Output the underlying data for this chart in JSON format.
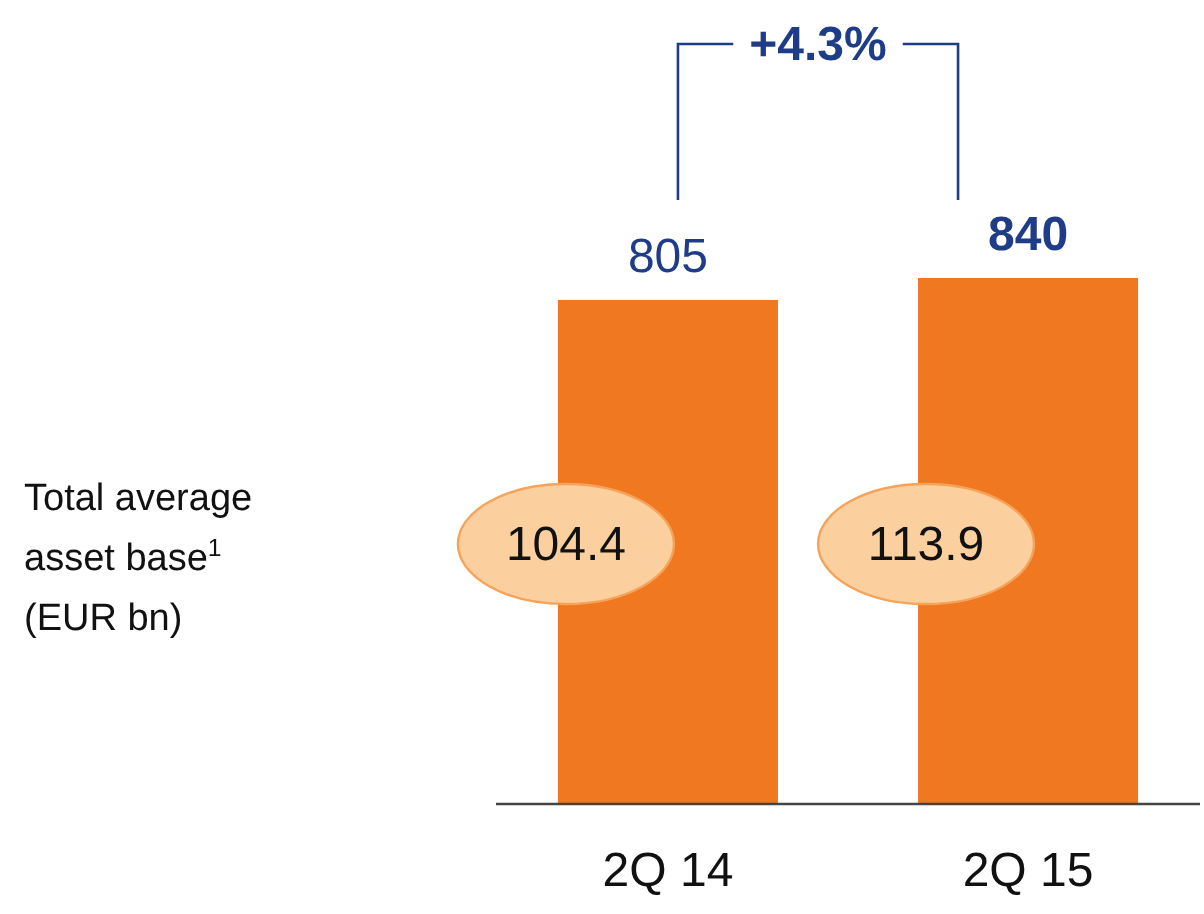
{
  "chart_data": {
    "type": "bar",
    "categories": [
      "2Q 14",
      "2Q 15"
    ],
    "values": [
      805,
      840
    ],
    "color": "#f07820",
    "data_labels": true,
    "annotations": [
      "+4.3%",
      "Total average\nasset base$^{1}$\n(EUR bn)",
      "104.4",
      "113.9"
    ]
  }
}
